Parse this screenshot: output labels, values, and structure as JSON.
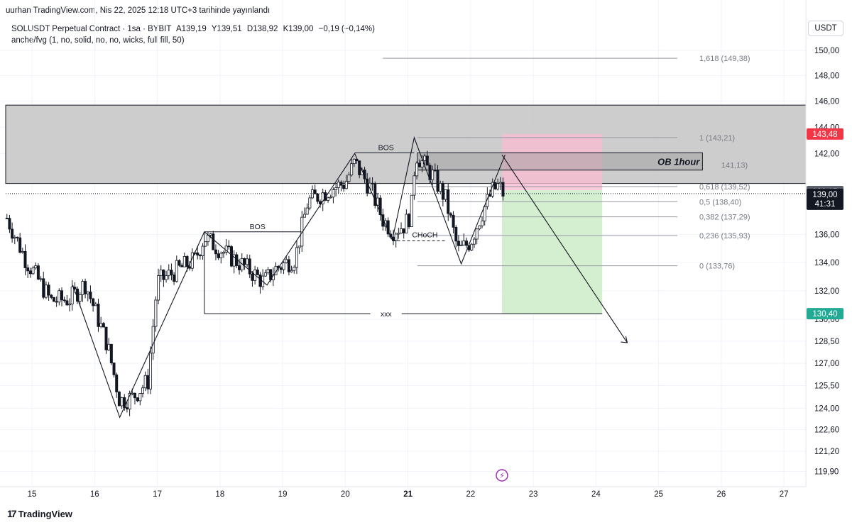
{
  "header": {
    "published": "uurhan TradingView.com, Nis 22, 2025 12:18 UTC+3 tarihinde yayınlandı",
    "symbol": "SOLUSDT Perpetual Contract · 1sa · BYBIT",
    "ohlc": [
      "A139,19",
      "Y139,51",
      "D138,92",
      "K139,00",
      "−0,19 (−0,14%)"
    ],
    "indicator": "anche/fvg (1, no, solid, no, no, wicks, full fill, 50)",
    "currency": "USDT"
  },
  "footer": {
    "logo_mark": "17",
    "logo_text": "TradingView"
  },
  "colors": {
    "bull": "#ffffff",
    "bear": "#131722",
    "ob_zone": "#c8c8c8",
    "stop_zone": "#f6bdd1",
    "target_zone": "#d3efcf",
    "stop_badge": "#f23645",
    "target_badge": "#22ab94",
    "price_badge": "#131722",
    "level_badge": "#5d606b"
  },
  "chart_data": {
    "type": "candlestick",
    "title": "SOLUSDT Perpetual Contract · 1sa · BYBIT",
    "x_ticks": [
      "15",
      "16",
      "17",
      "18",
      "19",
      "20",
      "21",
      "22",
      "23",
      "24",
      "25",
      "26",
      "27"
    ],
    "y_ticks": [
      "150,00",
      "148,00",
      "146,00",
      "144,00",
      "142,00",
      "136,00",
      "134,00",
      "132,00",
      "130,00",
      "128,50",
      "127,00",
      "125,50",
      "124,00",
      "122,60",
      "121,20",
      "119,90"
    ],
    "y_scale": "log",
    "ylim": [
      119.2,
      151.2
    ],
    "x_range_days": [
      14.58,
      27.35
    ],
    "anchors": [
      [
        14.6,
        137.2
      ],
      [
        14.9,
        134.2
      ],
      [
        15.3,
        131.3
      ],
      [
        15.6,
        131.4
      ],
      [
        15.85,
        132.5
      ],
      [
        16.2,
        128.3
      ],
      [
        16.4,
        124.5
      ],
      [
        16.6,
        124.7
      ],
      [
        16.85,
        125.8
      ],
      [
        17.0,
        132.6
      ],
      [
        17.3,
        133.4
      ],
      [
        17.6,
        134.2
      ],
      [
        17.75,
        135.8
      ],
      [
        18.1,
        134.6
      ],
      [
        18.4,
        133.7
      ],
      [
        18.7,
        132.6
      ],
      [
        18.9,
        133.6
      ],
      [
        19.2,
        134.3
      ],
      [
        19.4,
        138.4
      ],
      [
        19.75,
        139.3
      ],
      [
        20.0,
        139.8
      ],
      [
        20.15,
        141.3
      ],
      [
        20.4,
        139.4
      ],
      [
        20.6,
        137.1
      ],
      [
        20.75,
        136.3
      ],
      [
        20.95,
        136.7
      ],
      [
        21.05,
        137.6
      ],
      [
        21.12,
        142.0
      ],
      [
        21.4,
        140.3
      ],
      [
        21.6,
        138.6
      ],
      [
        21.8,
        134.8
      ],
      [
        22.0,
        135.5
      ],
      [
        22.2,
        137.8
      ],
      [
        22.35,
        139.2
      ],
      [
        22.45,
        139.6
      ],
      [
        22.52,
        139.0
      ]
    ],
    "last_price": 139.0,
    "previous_close_line": 139.15,
    "countdown": "41:31",
    "fibonacci": [
      {
        "label": "1,618 (149,38)",
        "value": 149.38
      },
      {
        "label": "1 (143,21)",
        "value": 143.21
      },
      {
        "label": "0,618 (139,52)",
        "value": 139.52
      },
      {
        "label": "0,5 (138,40)",
        "value": 138.4
      },
      {
        "label": "0,382 (137,29)",
        "value": 137.29
      },
      {
        "label": "0,236 (135,93)",
        "value": 135.93
      },
      {
        "label": "0 (133,76)",
        "value": 133.76
      }
    ],
    "fib_partial_label": "141,13)",
    "zones": {
      "order_block": {
        "top": 145.7,
        "bottom": 139.75
      },
      "ob_1hour": {
        "label": "OB 1hour",
        "top": 142.05,
        "bottom": 140.75,
        "from": 21.15,
        "to": 25.7
      },
      "stop": {
        "top": 143.48,
        "bottom": 139.25
      },
      "target": {
        "top": 139.25,
        "bottom": 130.4
      },
      "position_from": 22.5,
      "position_to": 24.1
    },
    "annotations": [
      {
        "label": "BOS",
        "value": 136.2
      },
      {
        "label": "BOS",
        "value": 142.05
      },
      {
        "label": "CHoCH",
        "value": 135.55
      },
      {
        "label": "xxx",
        "value": 130.4
      }
    ],
    "price_badges": {
      "stop": "143,48",
      "target": "130,40",
      "previous_close": "139,15",
      "last": "139,00"
    },
    "projection": [
      [
        22.5,
        141.9
      ],
      [
        24.5,
        128.4
      ]
    ],
    "swing_path": [
      [
        15.65,
        132.4
      ],
      [
        16.4,
        123.4
      ],
      [
        17.75,
        136.2
      ],
      [
        18.75,
        132.4
      ],
      [
        20.15,
        142.0
      ],
      [
        20.75,
        135.6
      ],
      [
        21.1,
        143.2
      ],
      [
        21.85,
        133.9
      ],
      [
        22.55,
        141.9
      ]
    ]
  }
}
